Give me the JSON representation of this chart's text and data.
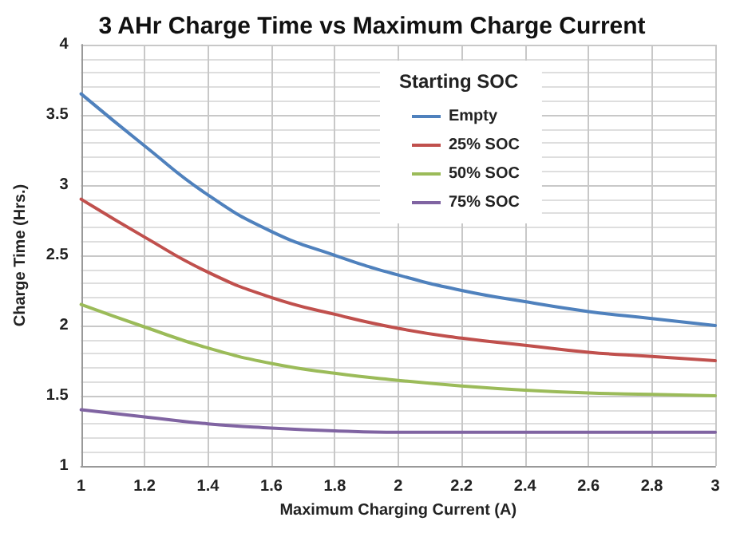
{
  "chart_data": {
    "type": "line",
    "title": "3 AHr Charge Time vs Maximum Charge Current",
    "xlabel": "Maximum Charging Current (A)",
    "ylabel": "Charge Time (Hrs.)",
    "legend_title": "Starting SOC",
    "x": [
      1,
      1.2,
      1.4,
      1.6,
      1.8,
      2,
      2.2,
      2.4,
      2.6,
      2.8,
      3
    ],
    "series": [
      {
        "name": "Empty",
        "color": "#4f81bd",
        "values": [
          3.65,
          3.28,
          2.93,
          2.67,
          2.5,
          2.36,
          2.25,
          2.17,
          2.1,
          2.05,
          2.0
        ]
      },
      {
        "name": "25% SOC",
        "color": "#c0504d",
        "values": [
          2.9,
          2.63,
          2.38,
          2.2,
          2.08,
          1.98,
          1.91,
          1.86,
          1.81,
          1.78,
          1.75
        ]
      },
      {
        "name": "50% SOC",
        "color": "#9bbb59",
        "values": [
          2.15,
          1.99,
          1.84,
          1.73,
          1.66,
          1.61,
          1.57,
          1.54,
          1.52,
          1.51,
          1.5
        ]
      },
      {
        "name": "75% SOC",
        "color": "#8064a2",
        "values": [
          1.4,
          1.35,
          1.3,
          1.27,
          1.25,
          1.24,
          1.24,
          1.24,
          1.24,
          1.24,
          1.24
        ]
      }
    ],
    "xlim": [
      1,
      3
    ],
    "xticks": [
      1,
      1.2,
      1.4,
      1.6,
      1.8,
      2,
      2.2,
      2.4,
      2.6,
      2.8,
      3
    ],
    "ylim": [
      1,
      4
    ],
    "yticks": [
      1,
      1.5,
      2,
      2.5,
      3,
      3.5,
      4
    ],
    "grid": true,
    "legend": "top right",
    "marker": "none",
    "line_style": "solid"
  }
}
